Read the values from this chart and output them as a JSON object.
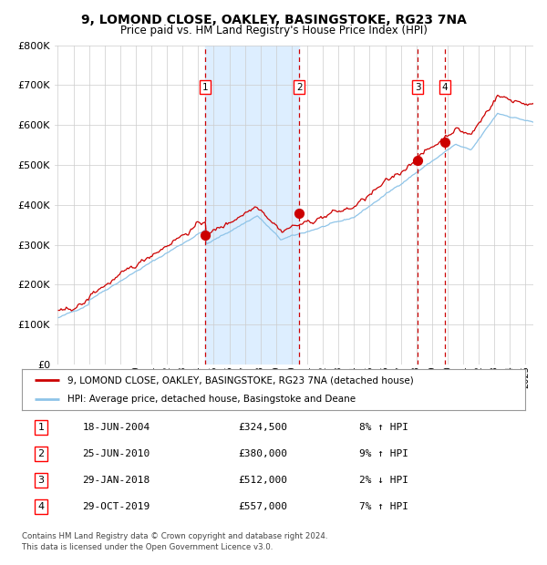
{
  "title": "9, LOMOND CLOSE, OAKLEY, BASINGSTOKE, RG23 7NA",
  "subtitle": "Price paid vs. HM Land Registry's House Price Index (HPI)",
  "legend_line1": "9, LOMOND CLOSE, OAKLEY, BASINGSTOKE, RG23 7NA (detached house)",
  "legend_line2": "HPI: Average price, detached house, Basingstoke and Deane",
  "footer": "Contains HM Land Registry data © Crown copyright and database right 2024.\nThis data is licensed under the Open Government Licence v3.0.",
  "transactions": [
    {
      "num": 1,
      "date": "18-JUN-2004",
      "price": 324500,
      "pct": "8%",
      "dir": "↑",
      "year_x": 2004.46
    },
    {
      "num": 2,
      "date": "25-JUN-2010",
      "price": 380000,
      "pct": "9%",
      "dir": "↑",
      "year_x": 2010.48
    },
    {
      "num": 3,
      "date": "29-JAN-2018",
      "price": 512000,
      "pct": "2%",
      "dir": "↓",
      "year_x": 2018.08
    },
    {
      "num": 4,
      "date": "29-OCT-2019",
      "price": 557000,
      "pct": "7%",
      "dir": "↑",
      "year_x": 2019.83
    }
  ],
  "hpi_color": "#8ec4e8",
  "price_color": "#cc0000",
  "vline_color": "#cc0000",
  "shade_color": "#ddeeff",
  "dot_color": "#cc0000",
  "ylim": [
    0,
    800000
  ],
  "yticks": [
    0,
    100000,
    200000,
    300000,
    400000,
    500000,
    600000,
    700000,
    800000
  ],
  "xlim_start": 1994.8,
  "xlim_end": 2025.5,
  "background_color": "#ffffff",
  "grid_color": "#cccccc"
}
